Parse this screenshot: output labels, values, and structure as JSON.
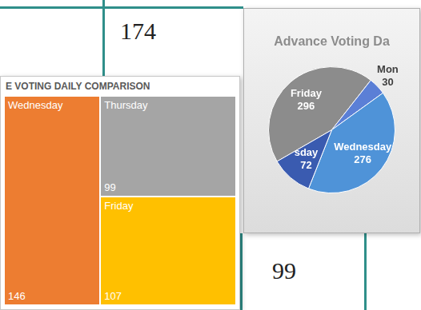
{
  "chart_data": [
    {
      "type": "treemap",
      "title": "E VOTING DAILY COMPARISON",
      "categories": [
        "Wednesday",
        "Thursday",
        "Friday"
      ],
      "values": [
        146,
        99,
        107
      ],
      "colors": [
        "#ed7d31",
        "#a5a5a5",
        "#ffc000"
      ],
      "data_labels": true
    },
    {
      "type": "pie",
      "title": "Advance Voting Da",
      "categories": [
        "Friday",
        "Mon",
        "Wednesday",
        "sday"
      ],
      "values": [
        296,
        30,
        276,
        72
      ],
      "colors": [
        "#8c8c8c",
        "#5b7fd6",
        "#4f93d8",
        "#3a5bb0"
      ],
      "data_labels": true
    }
  ],
  "calendar": {
    "numbers": [
      174,
      99
    ]
  }
}
